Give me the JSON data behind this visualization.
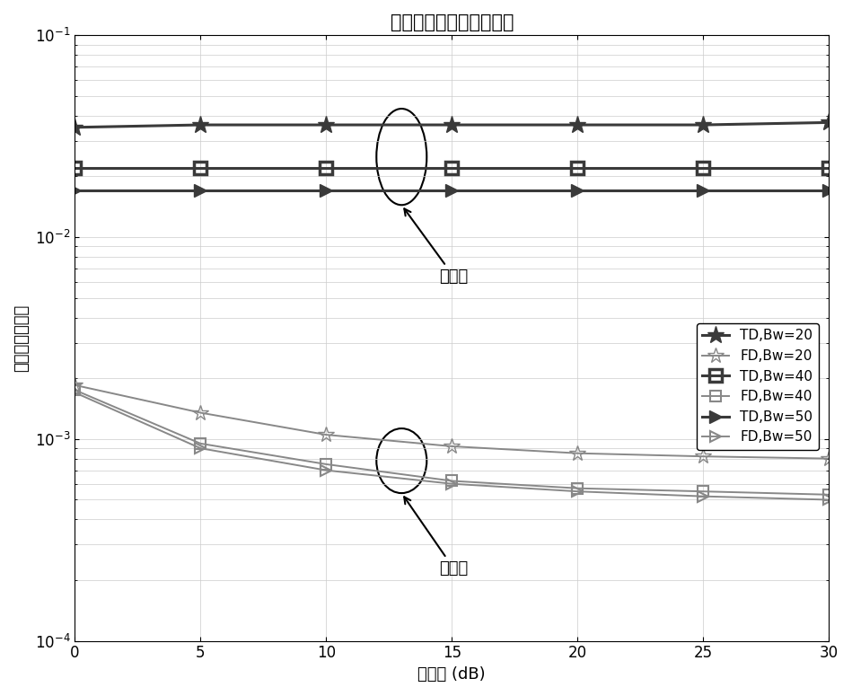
{
  "title": "信道测量归一化均方误差",
  "xlabel": "信噪比 (dB)",
  "ylabel": "归一化均方误差",
  "x": [
    0,
    5,
    10,
    15,
    20,
    25,
    30
  ],
  "TD_Bw20": [
    0.035,
    0.036,
    0.036,
    0.036,
    0.036,
    0.036,
    0.037
  ],
  "FD_Bw20": [
    0.00185,
    0.00135,
    0.00105,
    0.00092,
    0.00085,
    0.00082,
    0.0008
  ],
  "TD_Bw40": [
    0.022,
    0.022,
    0.022,
    0.022,
    0.022,
    0.022,
    0.022
  ],
  "FD_Bw40": [
    0.00175,
    0.00095,
    0.00075,
    0.00062,
    0.00057,
    0.00055,
    0.00053
  ],
  "TD_Bw50": [
    0.017,
    0.017,
    0.017,
    0.017,
    0.017,
    0.017,
    0.017
  ],
  "FD_Bw50": [
    0.0017,
    0.0009,
    0.0007,
    0.0006,
    0.00055,
    0.00052,
    0.0005
  ],
  "ylim": [
    0.0001,
    0.1
  ],
  "xlim": [
    0,
    30
  ],
  "dark_color": "#3a3a3a",
  "light_color": "#888888",
  "title_fontsize": 15,
  "label_fontsize": 13,
  "tick_fontsize": 12,
  "legend_fontsize": 11,
  "annot1_text": "原技术",
  "annot2_text": "本发明"
}
